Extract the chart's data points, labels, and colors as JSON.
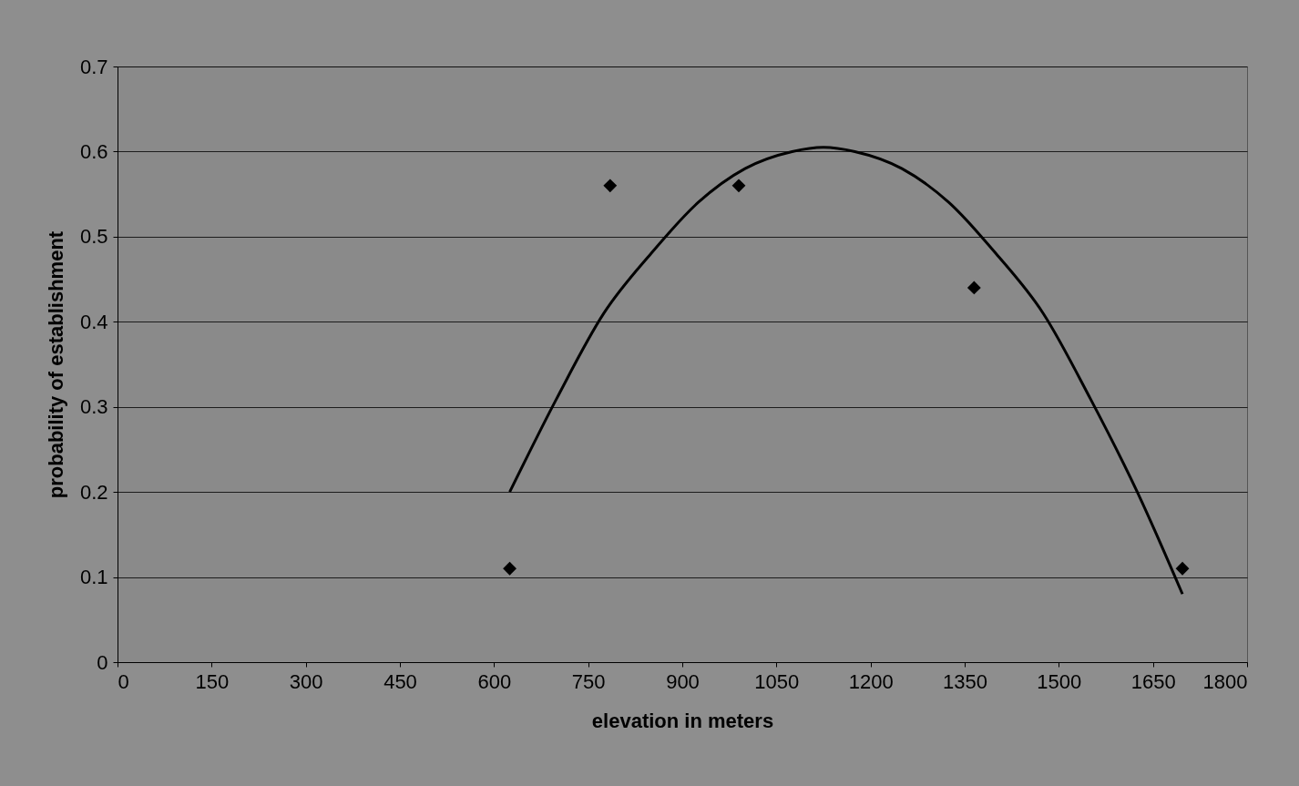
{
  "chart_data": {
    "type": "scatter",
    "xlabel": "elevation in meters",
    "ylabel": "probability of establishment",
    "xlim": [
      0,
      1800
    ],
    "xticks": [
      0,
      150,
      300,
      450,
      600,
      750,
      900,
      1050,
      1200,
      1350,
      1500,
      1650,
      1800
    ],
    "ylim": [
      0,
      0.7
    ],
    "yticks": [
      0,
      0.1,
      0.2,
      0.3,
      0.4,
      0.5,
      0.6,
      0.7
    ],
    "grid": "y",
    "series": [
      {
        "color": "#000000",
        "marker": "diamond",
        "x": [
          625,
          785,
          990,
          1365,
          1697
        ],
        "values": [
          0.11,
          0.56,
          0.56,
          0.44,
          0.11
        ]
      },
      {
        "type": "line",
        "color": "#000000",
        "marker": "none",
        "line_style": "solid",
        "x": [
          625,
          700,
          775,
          850,
          925,
          1000,
          1075,
          1125,
          1175,
          1250,
          1325,
          1400,
          1475,
          1550,
          1625,
          1697
        ],
        "values": [
          0.2,
          0.31,
          0.41,
          0.48,
          0.54,
          0.58,
          0.6,
          0.605,
          0.6,
          0.58,
          0.54,
          0.48,
          0.41,
          0.31,
          0.2,
          0.08
        ]
      }
    ]
  }
}
